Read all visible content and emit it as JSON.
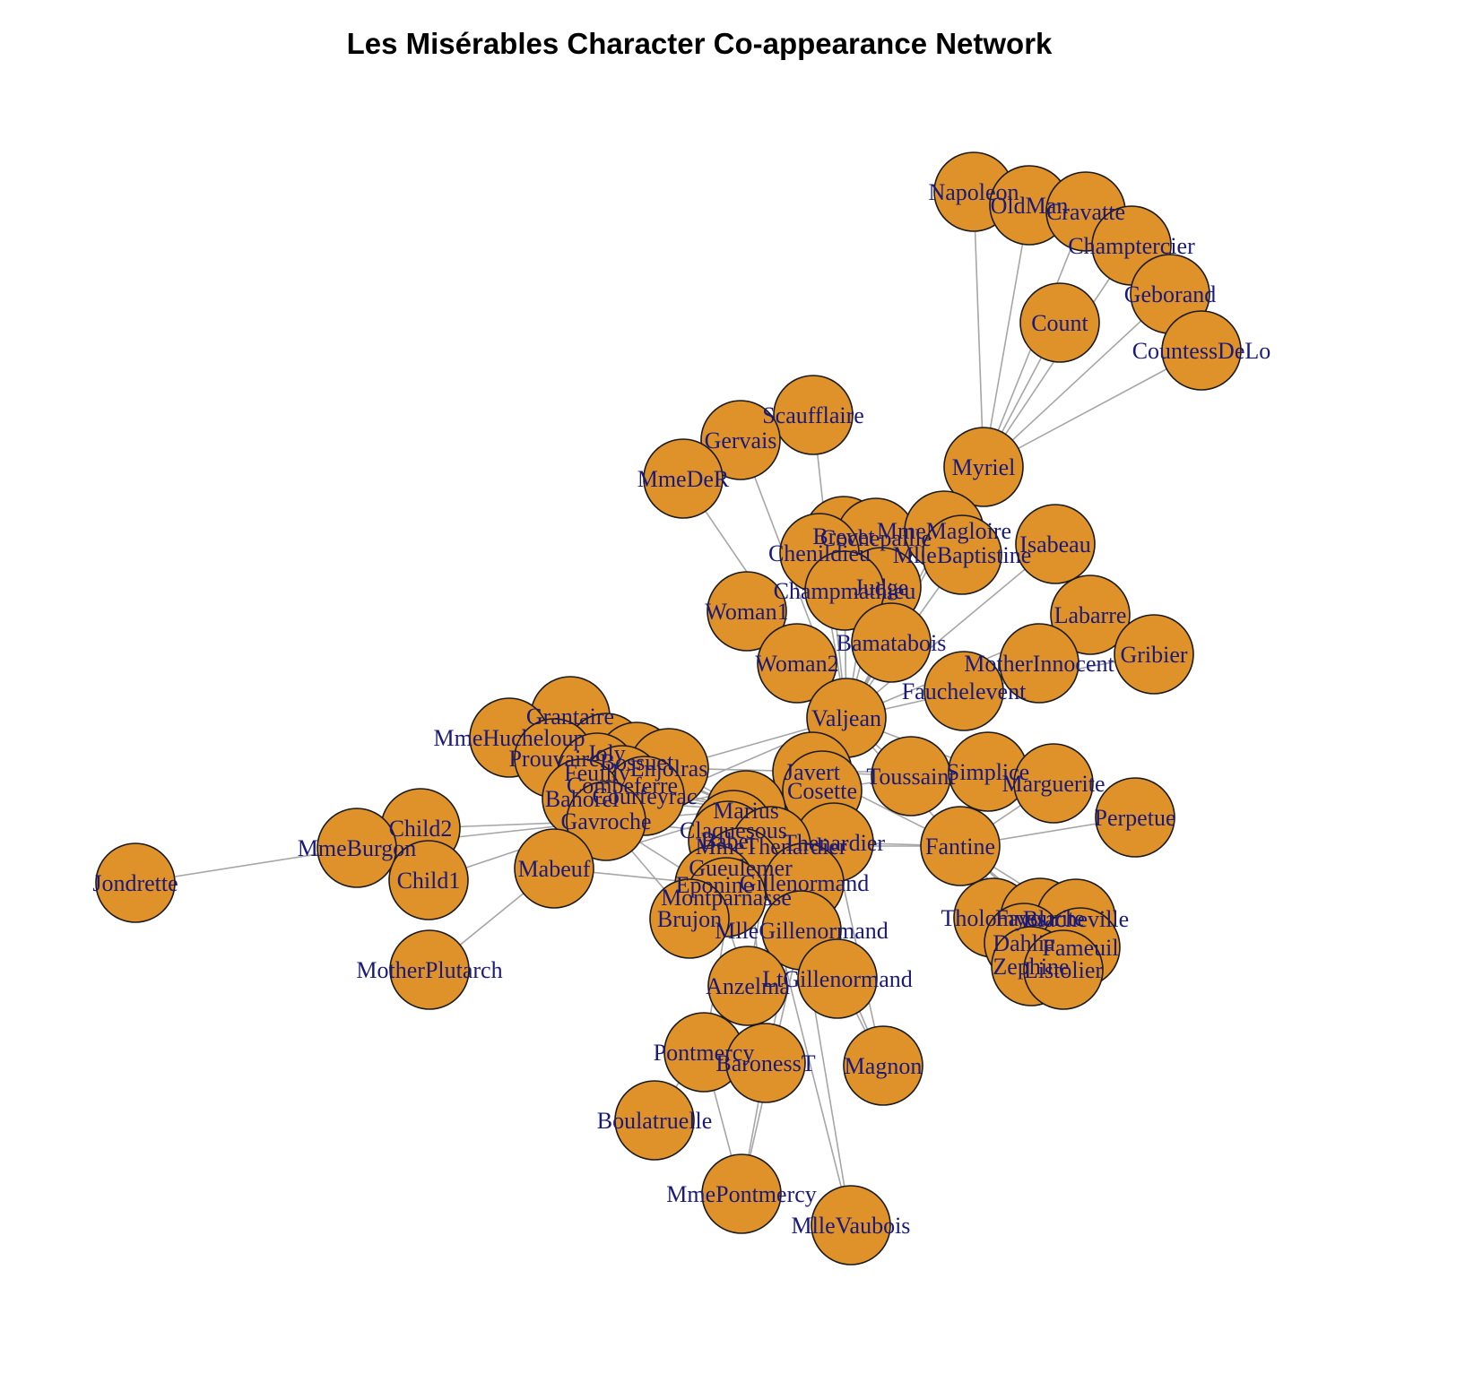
{
  "title": "Les Misérables Character Co-appearance Network",
  "colors": {
    "node_fill": "#E0922A",
    "node_stroke": "#1a1a1a",
    "edge": "#A6A6A6",
    "label": "#1A1A7A"
  },
  "nodes": [
    "Napoleon",
    "OldMan",
    "Cravatte",
    "Champtercier",
    "Geborand",
    "Count",
    "CountessDeLo",
    "Myriel",
    "Scaufflaire",
    "Gervais",
    "MmeDeR",
    "Brevet",
    "Cochepaille",
    "MmeMagloire",
    "MlleBaptistine",
    "Chenildieu",
    "Judge",
    "Champmathieu",
    "Isabeau",
    "Labarre",
    "Woman1",
    "Bamatabois",
    "Woman2",
    "MotherInnocent",
    "Gribier",
    "Fauchelevent",
    "Valjean",
    "Grantaire",
    "MmeHucheloup",
    "Joly",
    "Prouvaire",
    "Bossuet",
    "Enjolras",
    "Feuilly",
    "Combeferre",
    "Courfeyrac",
    "Bahorel",
    "Gavroche",
    "Javert",
    "Cosette",
    "Toussaint",
    "Simplice",
    "Marguerite",
    "Perpetue",
    "Child2",
    "MmeBurgon",
    "Child1",
    "Jondrette",
    "Mabeuf",
    "Marius",
    "Claquesous",
    "Babet",
    "Thenardier",
    "MmeThenardier",
    "Fantine",
    "Gueulemer",
    "Eponine",
    "Gillenormand",
    "Montparnasse",
    "Brujon",
    "MlleGillenormand",
    "Tholomyes",
    "Favourite",
    "Blacheville",
    "Dahlia",
    "Fameuil",
    "Zephine",
    "Listolier",
    "MotherPlutarch",
    "Anzelma",
    "LtGillenormand",
    "Pontmercy",
    "BaronessT",
    "Magnon",
    "Boulatruelle",
    "MmePontmercy",
    "MlleVaubois"
  ],
  "edges": [
    [
      "Napoleon",
      "Myriel"
    ],
    [
      "OldMan",
      "Myriel"
    ],
    [
      "Cravatte",
      "Myriel"
    ],
    [
      "Champtercier",
      "Myriel"
    ],
    [
      "Geborand",
      "Myriel"
    ],
    [
      "Count",
      "Myriel"
    ],
    [
      "CountessDeLo",
      "Myriel"
    ],
    [
      "MmeMagloire",
      "Myriel"
    ],
    [
      "MlleBaptistine",
      "Myriel"
    ],
    [
      "MmeMagloire",
      "MlleBaptistine"
    ],
    [
      "Valjean",
      "Myriel"
    ],
    [
      "Valjean",
      "MmeMagloire"
    ],
    [
      "Valjean",
      "MlleBaptistine"
    ],
    [
      "Valjean",
      "Scaufflaire"
    ],
    [
      "Valjean",
      "Gervais"
    ],
    [
      "Valjean",
      "MmeDeR"
    ],
    [
      "Valjean",
      "Brevet"
    ],
    [
      "Valjean",
      "Cochepaille"
    ],
    [
      "Valjean",
      "Chenildieu"
    ],
    [
      "Valjean",
      "Judge"
    ],
    [
      "Valjean",
      "Champmathieu"
    ],
    [
      "Valjean",
      "Isabeau"
    ],
    [
      "Valjean",
      "Labarre"
    ],
    [
      "Valjean",
      "Woman1"
    ],
    [
      "Valjean",
      "Woman2"
    ],
    [
      "Valjean",
      "Bamatabois"
    ],
    [
      "Valjean",
      "Fauchelevent"
    ],
    [
      "Fauchelevent",
      "MotherInnocent"
    ],
    [
      "Fauchelevent",
      "Gribier"
    ],
    [
      "Valjean",
      "Javert"
    ],
    [
      "Valjean",
      "Cosette"
    ],
    [
      "Valjean",
      "Toussaint"
    ],
    [
      "Valjean",
      "Simplice"
    ],
    [
      "Valjean",
      "Fantine"
    ],
    [
      "Valjean",
      "Marius"
    ],
    [
      "Valjean",
      "Thenardier"
    ],
    [
      "Valjean",
      "MmeThenardier"
    ],
    [
      "Valjean",
      "Gavroche"
    ],
    [
      "Valjean",
      "Enjolras"
    ],
    [
      "Valjean",
      "Gillenormand"
    ],
    [
      "Valjean",
      "MlleGillenormand"
    ],
    [
      "Valjean",
      "Babet"
    ],
    [
      "Valjean",
      "Claquesous"
    ],
    [
      "Valjean",
      "Gueulemer"
    ],
    [
      "Valjean",
      "Montparnasse"
    ],
    [
      "Valjean",
      "Brujon"
    ],
    [
      "Javert",
      "Cosette"
    ],
    [
      "Javert",
      "Fantine"
    ],
    [
      "Javert",
      "Toussaint"
    ],
    [
      "Javert",
      "Enjolras"
    ],
    [
      "Javert",
      "Gavroche"
    ],
    [
      "Javert",
      "Thenardier"
    ],
    [
      "Javert",
      "Bamatabois"
    ],
    [
      "Javert",
      "Simplice"
    ],
    [
      "Fantine",
      "Marguerite"
    ],
    [
      "Fantine",
      "Perpetue"
    ],
    [
      "Fantine",
      "Simplice"
    ],
    [
      "Fantine",
      "Tholomyes"
    ],
    [
      "Fantine",
      "Favourite"
    ],
    [
      "Fantine",
      "Blacheville"
    ],
    [
      "Fantine",
      "Dahlia"
    ],
    [
      "Fantine",
      "Fameuil"
    ],
    [
      "Fantine",
      "Zephine"
    ],
    [
      "Fantine",
      "Listolier"
    ],
    [
      "Fantine",
      "Thenardier"
    ],
    [
      "Fantine",
      "MmeThenardier"
    ],
    [
      "Tholomyes",
      "Favourite"
    ],
    [
      "Tholomyes",
      "Blacheville"
    ],
    [
      "Tholomyes",
      "Dahlia"
    ],
    [
      "Favourite",
      "Dahlia"
    ],
    [
      "Blacheville",
      "Fameuil"
    ],
    [
      "Zephine",
      "Listolier"
    ],
    [
      "Dahlia",
      "Zephine"
    ],
    [
      "Favourite",
      "Fameuil"
    ],
    [
      "Cosette",
      "Marius"
    ],
    [
      "Cosette",
      "Toussaint"
    ],
    [
      "Cosette",
      "Thenardier"
    ],
    [
      "Cosette",
      "Gillenormand"
    ],
    [
      "Cosette",
      "MlleGillenormand"
    ],
    [
      "Cosette",
      "LtGillenormand"
    ],
    [
      "Marius",
      "Enjolras"
    ],
    [
      "Marius",
      "Courfeyrac"
    ],
    [
      "Marius",
      "Combeferre"
    ],
    [
      "Marius",
      "Bossuet"
    ],
    [
      "Marius",
      "Joly"
    ],
    [
      "Marius",
      "Feuilly"
    ],
    [
      "Marius",
      "Bahorel"
    ],
    [
      "Marius",
      "Gavroche"
    ],
    [
      "Marius",
      "Mabeuf"
    ],
    [
      "Marius",
      "Eponine"
    ],
    [
      "Marius",
      "Gillenormand"
    ],
    [
      "Marius",
      "MlleGillenormand"
    ],
    [
      "Marius",
      "Pontmercy"
    ],
    [
      "Marius",
      "BaronessT"
    ],
    [
      "Marius",
      "LtGillenormand"
    ],
    [
      "Marius",
      "Thenardier"
    ],
    [
      "Marius",
      "MlleVaubois"
    ],
    [
      "Enjolras",
      "Combeferre"
    ],
    [
      "Enjolras",
      "Courfeyrac"
    ],
    [
      "Enjolras",
      "Bossuet"
    ],
    [
      "Enjolras",
      "Joly"
    ],
    [
      "Enjolras",
      "Feuilly"
    ],
    [
      "Enjolras",
      "Bahorel"
    ],
    [
      "Enjolras",
      "Prouvaire"
    ],
    [
      "Enjolras",
      "Grantaire"
    ],
    [
      "Enjolras",
      "Gavroche"
    ],
    [
      "Enjolras",
      "Mabeuf"
    ],
    [
      "Enjolras",
      "MmeHucheloup"
    ],
    [
      "Grantaire",
      "Bossuet"
    ],
    [
      "Grantaire",
      "Joly"
    ],
    [
      "Grantaire",
      "Bahorel"
    ],
    [
      "MmeHucheloup",
      "Bossuet"
    ],
    [
      "Gavroche",
      "Child1"
    ],
    [
      "Gavroche",
      "Child2"
    ],
    [
      "Gavroche",
      "MmeBurgon"
    ],
    [
      "Gavroche",
      "Mabeuf"
    ],
    [
      "Gavroche",
      "Thenardier"
    ],
    [
      "Gavroche",
      "Montparnasse"
    ],
    [
      "Gavroche",
      "Brujon"
    ],
    [
      "Child1",
      "Child2"
    ],
    [
      "MmeBurgon",
      "Child2"
    ],
    [
      "MmeBurgon",
      "Jondrette"
    ],
    [
      "Mabeuf",
      "MotherPlutarch"
    ],
    [
      "Mabeuf",
      "Eponine"
    ],
    [
      "Thenardier",
      "MmeThenardier"
    ],
    [
      "Thenardier",
      "Eponine"
    ],
    [
      "Thenardier",
      "Anzelma"
    ],
    [
      "Thenardier",
      "Babet"
    ],
    [
      "Thenardier",
      "Gueulemer"
    ],
    [
      "Thenardier",
      "Claquesous"
    ],
    [
      "Thenardier",
      "Montparnasse"
    ],
    [
      "Thenardier",
      "Brujon"
    ],
    [
      "Thenardier",
      "Pontmercy"
    ],
    [
      "Thenardier",
      "Boulatruelle"
    ],
    [
      "Thenardier",
      "Magnon"
    ],
    [
      "MmeThenardier",
      "Eponine"
    ],
    [
      "MmeThenardier",
      "Anzelma"
    ],
    [
      "MmeThenardier",
      "Magnon"
    ],
    [
      "Eponine",
      "Anzelma"
    ],
    [
      "Eponine",
      "Montparnasse"
    ],
    [
      "Eponine",
      "Brujon"
    ],
    [
      "Eponine",
      "Claquesous"
    ],
    [
      "Gillenormand",
      "MlleGillenormand"
    ],
    [
      "Gillenormand",
      "LtGillenormand"
    ],
    [
      "Gillenormand",
      "Magnon"
    ],
    [
      "Gillenormand",
      "BaronessT"
    ],
    [
      "MlleGillenormand",
      "LtGillenormand"
    ],
    [
      "MlleGillenormand",
      "MmePontmercy"
    ],
    [
      "MlleGillenormand",
      "MlleVaubois"
    ],
    [
      "Pontmercy",
      "MmePontmercy"
    ],
    [
      "BaronessT",
      "MmePontmercy"
    ]
  ]
}
